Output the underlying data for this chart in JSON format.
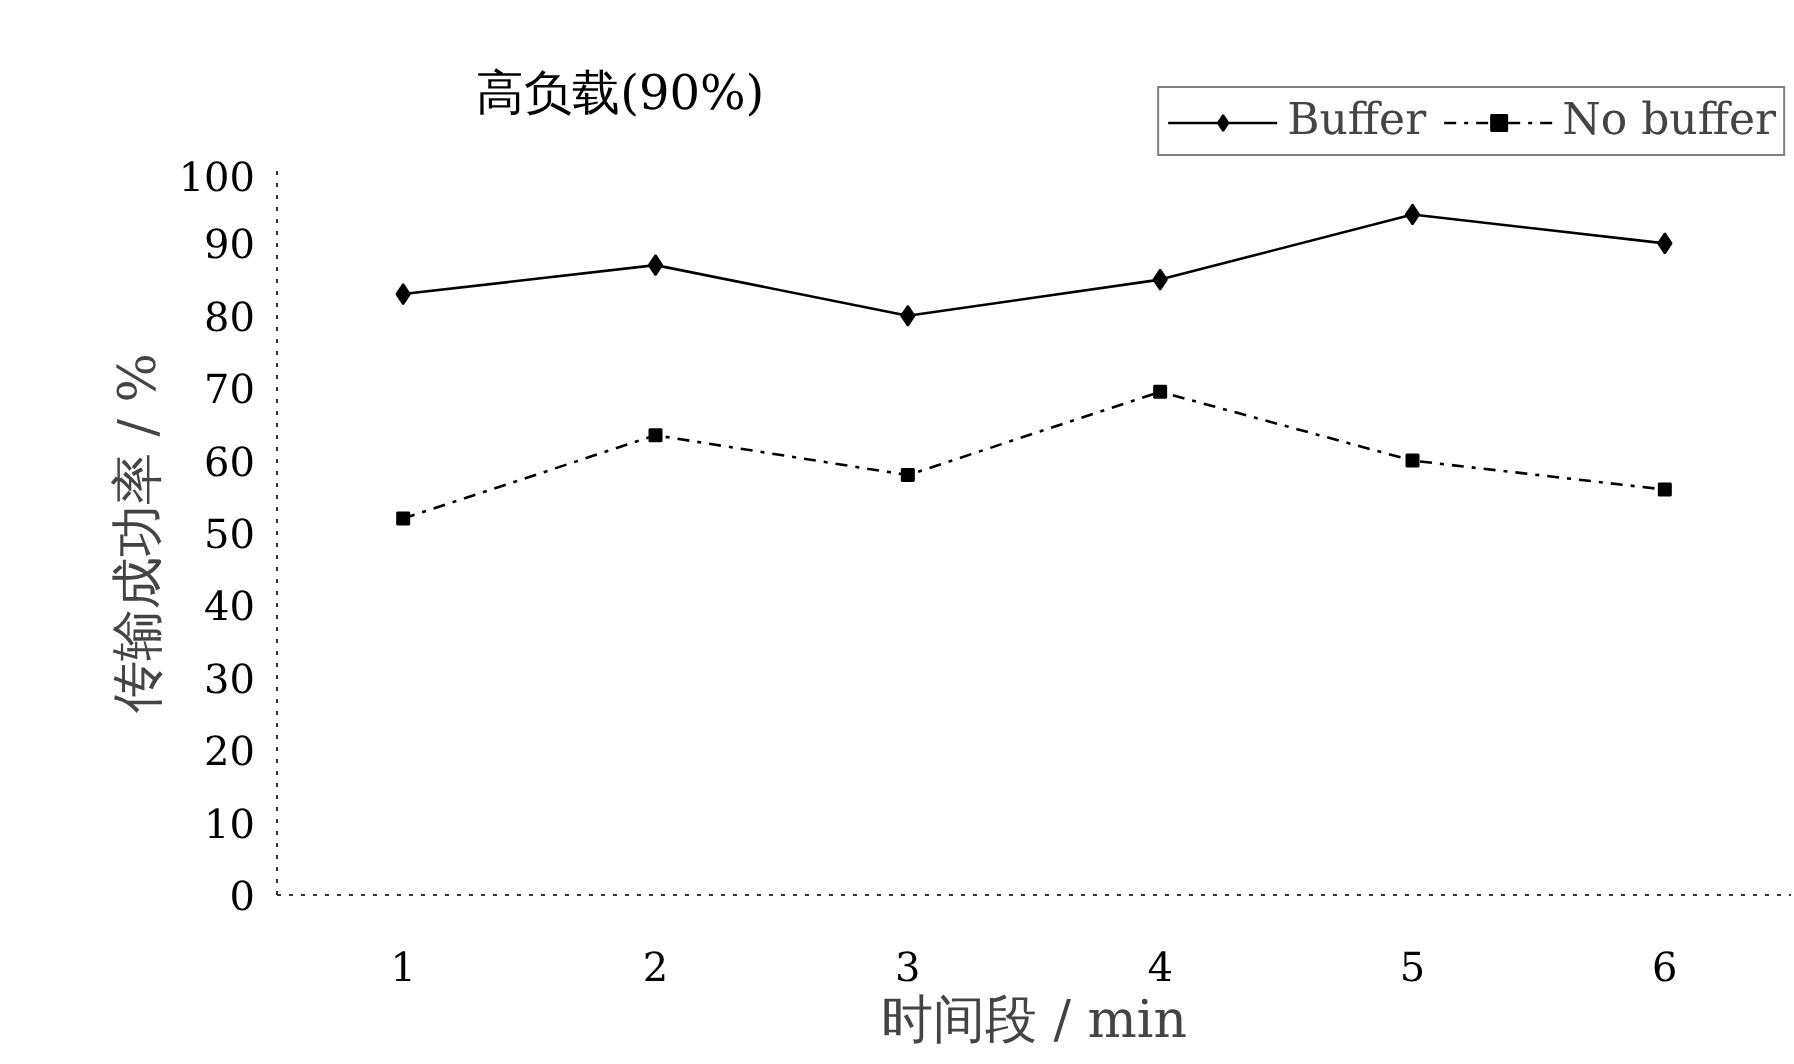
{
  "chart_data": {
    "type": "line",
    "title": "高负载(90%)",
    "xlabel": "时间段 / min",
    "ylabel": "传输成功率 / %",
    "categories": [
      "1",
      "2",
      "3",
      "4",
      "5",
      "6"
    ],
    "series": [
      {
        "name": "Buffer",
        "color": "#000000",
        "marker": "diamond",
        "line_style": "solid",
        "values": [
          83,
          87,
          80,
          85,
          94,
          90
        ]
      },
      {
        "name": "No buffer",
        "color": "#000000",
        "marker": "square",
        "line_style": "dashdot",
        "values": [
          52,
          63.5,
          58,
          69.5,
          60,
          56
        ]
      }
    ],
    "ylim": [
      0,
      100
    ],
    "yticks": [
      0,
      10,
      20,
      30,
      40,
      50,
      60,
      70,
      80,
      90,
      100
    ],
    "grid": false,
    "legend": "top right"
  }
}
